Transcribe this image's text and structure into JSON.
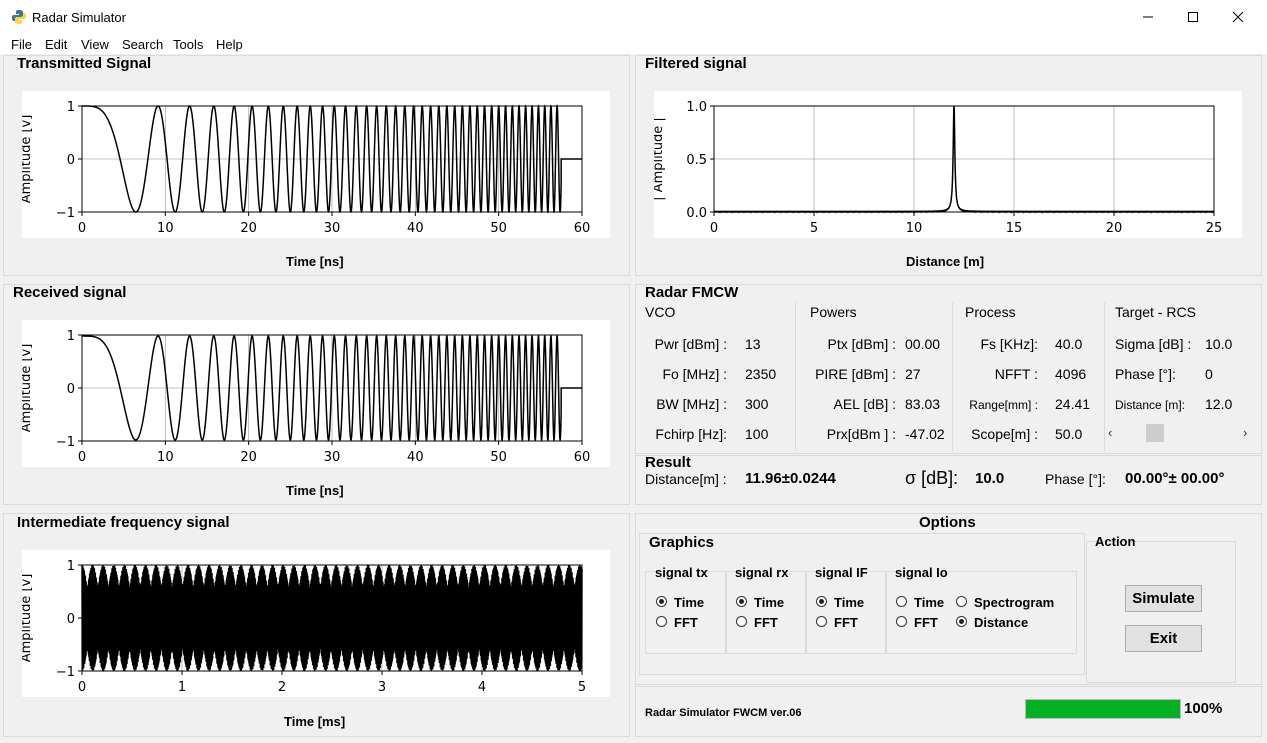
{
  "window": {
    "title": "Radar Simulator"
  },
  "menu": [
    "File",
    "Edit",
    "View",
    "Search",
    "Tools",
    "Help"
  ],
  "tx": {
    "title": "Transmitted Signal",
    "ylabel": "Amplitude [v]",
    "xlabel": "Time [ns]",
    "yticks": [
      "1",
      "0",
      "−1"
    ],
    "xticks": [
      "0",
      "10",
      "20",
      "30",
      "40",
      "50",
      "60"
    ]
  },
  "rx": {
    "title": "Received  signal",
    "ylabel": "Amplitude [v]",
    "xlabel": "Time [ns]",
    "yticks": [
      "1",
      "0",
      "−1"
    ],
    "xticks": [
      "0",
      "10",
      "20",
      "30",
      "40",
      "50",
      "60"
    ]
  },
  "ifs": {
    "title": "Intermediate frequency signal",
    "ylabel": "Amplitude [v]",
    "xlabel": "Time [ms]",
    "yticks": [
      "1",
      "0",
      "−1"
    ],
    "xticks": [
      "0",
      "1",
      "2",
      "3",
      "4",
      "5"
    ]
  },
  "filt": {
    "title": "Filtered signal",
    "ylabel": "| Amplitude |",
    "xlabel": "Distance [m]",
    "yticks": [
      "1.0",
      "0.5",
      "0.0"
    ],
    "xticks": [
      "0",
      "5",
      "10",
      "15",
      "20",
      "25"
    ]
  },
  "chart_data": [
    {
      "type": "line",
      "title": "Transmitted Signal",
      "xlabel": "Time [ns]",
      "ylabel": "Amplitude [v]",
      "xlim": [
        0,
        60
      ],
      "ylim": [
        -1,
        1
      ],
      "grid": true,
      "description_series": [
        {
          "values_note": "chirp cos, amplitude 1, frequency increasing with time"
        }
      ]
    },
    {
      "type": "line",
      "title": "Received  signal",
      "xlabel": "Time [ns]",
      "ylabel": "Amplitude [v]",
      "xlim": [
        0,
        60
      ],
      "ylim": [
        -1,
        1
      ],
      "grid": true
    },
    {
      "type": "line",
      "title": "Intermediate frequency signal",
      "xlabel": "Time [ms]",
      "ylabel": "Amplitude [v]",
      "xlim": [
        0,
        5
      ],
      "ylim": [
        -1,
        1
      ],
      "grid": true
    },
    {
      "type": "line",
      "title": "Filtered signal",
      "xlabel": "Distance [m]",
      "ylabel": "| Amplitude |",
      "xlim": [
        0,
        25
      ],
      "ylim": [
        0,
        1
      ],
      "grid": true,
      "peak": {
        "x": 12.0,
        "y": 1.0
      }
    }
  ],
  "radar": {
    "title": "Radar  FMCW",
    "vco": {
      "header": "VCO",
      "rows": [
        [
          "Pwr [dBm] :",
          "13"
        ],
        [
          "Fo [MHz] :",
          "2350"
        ],
        [
          "BW [MHz] :",
          "300"
        ],
        [
          "Fchirp [Hz]:",
          "100"
        ]
      ]
    },
    "powers": {
      "header": "Powers",
      "rows": [
        [
          "Ptx [dBm] :",
          "00.00"
        ],
        [
          "PIRE  [dBm] :",
          "27"
        ],
        [
          "AEL  [dB] :",
          "83.03"
        ],
        [
          "Prx[dBm ] :",
          "-47.02"
        ]
      ]
    },
    "process": {
      "header": "Process",
      "rows": [
        [
          "Fs [KHz]:",
          "40.0"
        ],
        [
          "NFFT :",
          "4096"
        ],
        [
          "Range[mm] :",
          "24.41"
        ],
        [
          "Scope[m] :",
          "50.0"
        ]
      ]
    },
    "target": {
      "header": "Target - RCS",
      "rows": [
        [
          "Sigma [dB] :",
          "10.0"
        ],
        [
          "Phase  [°]:",
          "0"
        ],
        [
          "Distance [m]:",
          "12.0"
        ]
      ]
    }
  },
  "result": {
    "title": "Result",
    "distance_label": "Distance[m] :",
    "distance_value": "11.96±0.0244",
    "sigma_label": "σ [dB]:",
    "sigma_value": "10.0",
    "phase_label": "Phase [°]:",
    "phase_value": "00.00°± 00.00°"
  },
  "options": {
    "title": "Options",
    "graphics_title": "Graphics",
    "action_title": "Action",
    "groups": [
      {
        "title": "signal tx",
        "opts": [
          "Time",
          "FFT"
        ],
        "selected": "Time"
      },
      {
        "title": "signal rx",
        "opts": [
          "Time",
          "FFT"
        ],
        "selected": "Time"
      },
      {
        "title": "signal IF",
        "opts": [
          "Time",
          "FFT"
        ],
        "selected": "Time"
      },
      {
        "title": "signal Io",
        "opts": [
          "Time",
          "FFT",
          "Spectrogram",
          "Distance"
        ],
        "selected": "Distance"
      }
    ],
    "simulate": "Simulate",
    "exit": "Exit"
  },
  "status": {
    "version": "Radar Simulator FWCM  ver.06",
    "progress_text": "100%",
    "progress": 1.0,
    "progress_color": "#06b025"
  }
}
